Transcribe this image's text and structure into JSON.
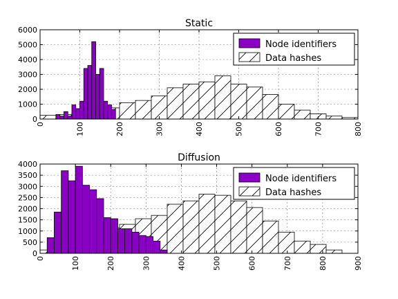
{
  "chart_data": [
    {
      "type": "bar",
      "title": "Static",
      "xlim": [
        0,
        800
      ],
      "ylim": [
        0,
        6000
      ],
      "xticks": [
        0,
        100,
        200,
        300,
        400,
        500,
        600,
        700,
        800
      ],
      "yticks": [
        0,
        1000,
        2000,
        3000,
        4000,
        5000,
        6000
      ],
      "grid": true,
      "legend_position": "top-right",
      "series": [
        {
          "name": "Node identifiers",
          "color": "#8a00c4",
          "pattern": "solid",
          "bin_width": 10,
          "x": [
            40,
            50,
            60,
            70,
            80,
            90,
            100,
            110,
            120,
            130,
            140,
            150,
            160,
            170,
            180
          ],
          "values": [
            300,
            200,
            500,
            200,
            950,
            700,
            1200,
            3400,
            3600,
            5200,
            3000,
            3400,
            1200,
            950,
            650
          ]
        },
        {
          "name": "Data hashes",
          "color": "#ffffff",
          "pattern": "hatch",
          "bin_width": 40,
          "x": [
            0,
            40,
            80,
            120,
            160,
            200,
            240,
            280,
            320,
            360,
            400,
            440,
            480,
            520,
            560,
            600,
            640,
            680,
            720,
            760
          ],
          "values": [
            250,
            300,
            400,
            700,
            750,
            1100,
            1250,
            1550,
            2100,
            2350,
            2500,
            2900,
            2350,
            2150,
            1650,
            1000,
            600,
            350,
            200,
            100
          ]
        }
      ]
    },
    {
      "type": "bar",
      "title": "Diffusion",
      "xlim": [
        0,
        900
      ],
      "ylim": [
        0,
        4000
      ],
      "xticks": [
        0,
        100,
        200,
        300,
        400,
        500,
        600,
        700,
        800,
        900
      ],
      "yticks": [
        0,
        500,
        1000,
        1500,
        2000,
        2500,
        3000,
        3500,
        4000
      ],
      "grid": true,
      "legend_position": "top-right",
      "series": [
        {
          "name": "Node identifiers",
          "color": "#8a00c4",
          "pattern": "solid",
          "bin_width": 20,
          "x": [
            20,
            40,
            60,
            80,
            100,
            120,
            140,
            160,
            180,
            200,
            220,
            240,
            260,
            280,
            300,
            320,
            340
          ],
          "values": [
            700,
            1850,
            3700,
            3250,
            3900,
            3050,
            2850,
            2450,
            1600,
            1550,
            1100,
            1100,
            950,
            800,
            750,
            550,
            150
          ]
        },
        {
          "name": "Data hashes",
          "color": "#ffffff",
          "pattern": "hatch",
          "bin_width": 45,
          "x": [
            0,
            45,
            90,
            135,
            180,
            225,
            270,
            315,
            360,
            405,
            450,
            495,
            540,
            585,
            630,
            675,
            720,
            765,
            810
          ],
          "values": [
            150,
            380,
            600,
            900,
            1150,
            1300,
            1550,
            1700,
            2200,
            2350,
            2650,
            2600,
            2350,
            2050,
            1450,
            950,
            550,
            400,
            150
          ]
        }
      ]
    }
  ]
}
